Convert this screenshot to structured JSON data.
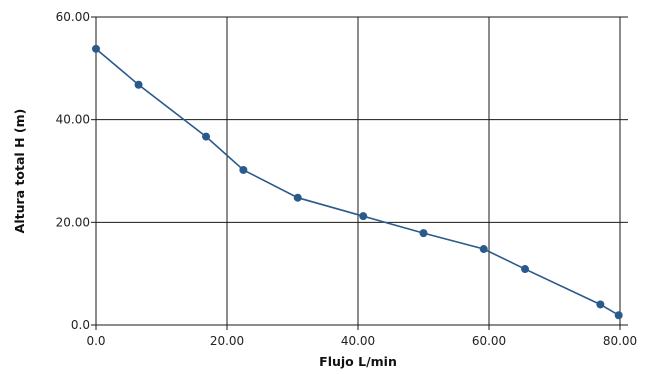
{
  "chart_data": {
    "type": "line",
    "title": "",
    "xlabel": "Flujo L/min",
    "ylabel": "Altura total H (m)",
    "xlim": [
      0,
      80
    ],
    "ylim": [
      0,
      60
    ],
    "x_ticks": [
      0,
      20,
      40,
      60,
      80
    ],
    "x_tick_labels": [
      "0.0",
      "20.00",
      "40.00",
      "60.00",
      "80.00"
    ],
    "y_ticks": [
      0,
      20,
      40,
      60
    ],
    "y_tick_labels": [
      "0.0",
      "20.00",
      "40.00",
      "60.00"
    ],
    "grid": true,
    "colors": {
      "series": "#2a5a8c",
      "grid": "#1a1a1a"
    },
    "series": [
      {
        "x": [
          0.0,
          6.5,
          16.8,
          22.5,
          30.8,
          40.8,
          50.0,
          59.2,
          65.5,
          77.0,
          79.8
        ],
        "y": [
          53.8,
          46.8,
          36.7,
          30.2,
          24.8,
          21.2,
          17.9,
          14.8,
          10.9,
          4.0,
          1.9
        ]
      }
    ]
  }
}
